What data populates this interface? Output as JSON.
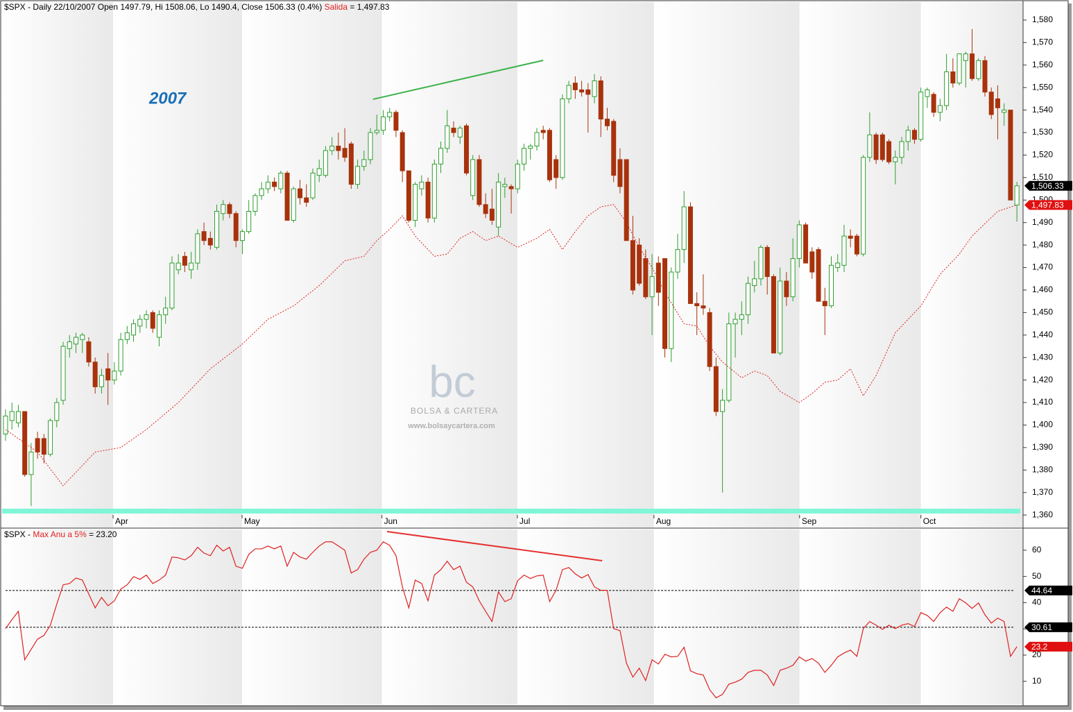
{
  "chart_data": [
    {
      "type": "candlestick",
      "title": "$SPX - Daily 22/10/2007 Open 1497.79, Hi 1508.06, Lo 1490.4, Close 1506.33 (0.4%)",
      "annotation": "2007",
      "watermark": {
        "logo": "bc",
        "name": "BOLSA & CARTERA",
        "url": "www.bolsaycartera.com"
      },
      "up_color": "#2e9e2e",
      "down_color": "#a8320c",
      "xlim": [
        -0.54,
        158.96
      ],
      "xticks": [
        {
          "value": 16.8,
          "label": "Apr"
        },
        {
          "value": 36.95,
          "label": "May"
        },
        {
          "value": 58.8,
          "label": "Jun"
        },
        {
          "value": 79.96,
          "label": "Jul"
        },
        {
          "value": 101.3,
          "label": "Aug"
        },
        {
          "value": 124.05,
          "label": "Sep"
        },
        {
          "value": 143.0,
          "label": "Oct"
        }
      ],
      "ylim": [
        1354.5,
        1588
      ],
      "yticks": [
        {
          "value": 1360,
          "label": "1,360"
        },
        {
          "value": 1370,
          "label": "1,370"
        },
        {
          "value": 1380,
          "label": "1,380"
        },
        {
          "value": 1390,
          "label": "1,390"
        },
        {
          "value": 1400,
          "label": "1,400"
        },
        {
          "value": 1410,
          "label": "1,410"
        },
        {
          "value": 1420,
          "label": "1,420"
        },
        {
          "value": 1430,
          "label": "1,430"
        },
        {
          "value": 1440,
          "label": "1,440"
        },
        {
          "value": 1450,
          "label": "1,450"
        },
        {
          "value": 1460,
          "label": "1,460"
        },
        {
          "value": 1470,
          "label": "1,470"
        },
        {
          "value": 1480,
          "label": "1,480"
        },
        {
          "value": 1490,
          "label": "1,490"
        },
        {
          "value": 1500,
          "label": "1,500"
        },
        {
          "value": 1510,
          "label": "1,510"
        },
        {
          "value": 1520,
          "label": "1,520"
        },
        {
          "value": 1530,
          "label": "1,530"
        },
        {
          "value": 1540,
          "label": "1,540"
        },
        {
          "value": 1550,
          "label": "1,550"
        },
        {
          "value": 1560,
          "label": "1,560"
        },
        {
          "value": 1570,
          "label": "1,570"
        },
        {
          "value": 1580,
          "label": "1,580"
        }
      ],
      "close_label": "1,506.33",
      "ohlc": {
        "open": [
          1396,
          1402,
          1401,
          1406,
          1378,
          1394,
          1394,
          1387,
          1402,
          1411,
          1434,
          1436,
          1438,
          1437,
          1428,
          1417,
          1425,
          1420,
          1424,
          1438,
          1440,
          1444,
          1447,
          1450,
          1439,
          1449,
          1452,
          1469,
          1475,
          1469,
          1472,
          1486,
          1483,
          1479,
          1494,
          1498,
          1494,
          1482,
          1486,
          1495,
          1502,
          1505,
          1508,
          1505,
          1512,
          1491,
          1505,
          1501,
          1501,
          1511,
          1511,
          1522,
          1524,
          1523,
          1525,
          1507,
          1515,
          1518,
          1530,
          1531,
          1537,
          1539,
          1530,
          1513,
          1491,
          1505,
          1508,
          1492,
          1516,
          1523,
          1532,
          1528,
          1533,
          1502,
          1518,
          1498,
          1496,
          1488,
          1506,
          1506,
          1505,
          1516,
          1523,
          1524,
          1531,
          1531,
          1518,
          1510,
          1545,
          1552,
          1549,
          1549,
          1546,
          1553,
          1536,
          1535,
          1518,
          1518,
          1482,
          1480,
          1474,
          1457,
          1472,
          1474,
          1434,
          1468,
          1478,
          1497,
          1454,
          1453,
          1450,
          1426,
          1406,
          1411,
          1445,
          1447,
          1449,
          1462,
          1465,
          1479,
          1466,
          1432,
          1464,
          1457,
          1474,
          1489,
          1477,
          1478,
          1455,
          1453,
          1470,
          1471,
          1484,
          1484,
          1476,
          1519,
          1529,
          1529,
          1526,
          1517,
          1519,
          1526,
          1531,
          1527,
          1546,
          1547,
          1539,
          1542,
          1557,
          1552,
          1562,
          1565,
          1554,
          1562,
          1548,
          1545,
          1539,
          1540,
          1497.79
        ],
        "high": [
          1407,
          1410,
          1409,
          1406,
          1392,
          1397,
          1396,
          1403,
          1412,
          1437,
          1440,
          1441,
          1441,
          1439,
          1430,
          1425,
          1432,
          1428,
          1441,
          1444,
          1447,
          1449,
          1451,
          1451,
          1451,
          1457,
          1475,
          1476,
          1477,
          1477,
          1487,
          1490,
          1486,
          1498,
          1500,
          1499,
          1495,
          1487,
          1500,
          1503,
          1508,
          1511,
          1510,
          1513,
          1513,
          1506,
          1509,
          1507,
          1514,
          1518,
          1524,
          1528,
          1530,
          1532,
          1526,
          1518,
          1522,
          1532,
          1538,
          1540,
          1541,
          1540,
          1531,
          1513,
          1508,
          1511,
          1510,
          1518,
          1526,
          1540,
          1535,
          1533,
          1534,
          1520,
          1520,
          1503,
          1505,
          1512,
          1510,
          1507,
          1518,
          1525,
          1525,
          1532,
          1533,
          1532,
          1520,
          1547,
          1553,
          1555,
          1553,
          1552,
          1556,
          1555,
          1541,
          1536,
          1523,
          1518,
          1493,
          1483,
          1478,
          1476,
          1475,
          1474,
          1470,
          1485,
          1504,
          1499,
          1459,
          1467,
          1452,
          1430,
          1416,
          1450,
          1450,
          1455,
          1466,
          1473,
          1480,
          1480,
          1467,
          1470,
          1468,
          1483,
          1491,
          1490,
          1479,
          1479,
          1461,
          1475,
          1476,
          1489,
          1487,
          1485,
          1520,
          1539,
          1530,
          1530,
          1527,
          1522,
          1528,
          1533,
          1532,
          1550,
          1550,
          1548,
          1545,
          1565,
          1563,
          1565,
          1566,
          1576,
          1563,
          1564,
          1550,
          1551,
          1543,
          1540,
          1508.06
        ],
        "low": [
          1393,
          1398,
          1399,
          1377,
          1364,
          1385,
          1383,
          1386,
          1399,
          1409,
          1430,
          1432,
          1432,
          1426,
          1414,
          1414,
          1409,
          1418,
          1422,
          1436,
          1437,
          1441,
          1443,
          1441,
          1435,
          1445,
          1451,
          1467,
          1468,
          1465,
          1469,
          1480,
          1478,
          1478,
          1491,
          1492,
          1479,
          1476,
          1485,
          1493,
          1500,
          1503,
          1504,
          1503,
          1491,
          1490,
          1498,
          1497,
          1500,
          1508,
          1510,
          1520,
          1518,
          1517,
          1505,
          1505,
          1513,
          1516,
          1529,
          1529,
          1535,
          1528,
          1508,
          1490,
          1488,
          1502,
          1490,
          1490,
          1512,
          1521,
          1528,
          1525,
          1511,
          1500,
          1497,
          1492,
          1489,
          1484,
          1501,
          1494,
          1503,
          1513,
          1518,
          1522,
          1527,
          1508,
          1505,
          1509,
          1543,
          1545,
          1546,
          1530,
          1543,
          1528,
          1531,
          1508,
          1503,
          1482,
          1458,
          1462,
          1456,
          1440,
          1453,
          1430,
          1428,
          1465,
          1472,
          1454,
          1440,
          1449,
          1424,
          1404,
          1370,
          1410,
          1430,
          1440,
          1445,
          1459,
          1462,
          1458,
          1432,
          1431,
          1453,
          1455,
          1470,
          1472,
          1465,
          1455,
          1440,
          1452,
          1468,
          1468,
          1479,
          1475,
          1475,
          1517,
          1516,
          1517,
          1516,
          1507,
          1516,
          1522,
          1525,
          1526,
          1541,
          1537,
          1535,
          1540,
          1550,
          1551,
          1550,
          1553,
          1553,
          1546,
          1536,
          1527,
          1533,
          1500,
          1490.4
        ],
        "close": [
          1404,
          1406,
          1406,
          1378,
          1388,
          1388,
          1387,
          1402,
          1410,
          1435,
          1437,
          1439,
          1440,
          1428,
          1417,
          1422,
          1420,
          1424,
          1438,
          1441,
          1445,
          1447,
          1449,
          1443,
          1449,
          1452,
          1472,
          1472,
          1471,
          1472,
          1485,
          1482,
          1480,
          1495,
          1498,
          1494,
          1482,
          1486,
          1495,
          1502,
          1505,
          1508,
          1506,
          1512,
          1491,
          1505,
          1501,
          1499,
          1512,
          1514,
          1522,
          1524,
          1522,
          1519,
          1507,
          1515,
          1518,
          1530,
          1531,
          1537,
          1539,
          1531,
          1513,
          1491,
          1507,
          1508,
          1492,
          1516,
          1523,
          1533,
          1530,
          1532,
          1512,
          1518,
          1498,
          1494,
          1491,
          1508,
          1507,
          1505,
          1516,
          1523,
          1524,
          1530,
          1530,
          1509,
          1510,
          1545,
          1551,
          1549,
          1548,
          1547,
          1553,
          1536,
          1533,
          1511,
          1506,
          1482,
          1460,
          1463,
          1457,
          1466,
          1459,
          1434,
          1468,
          1478,
          1497,
          1454,
          1453,
          1452,
          1426,
          1406,
          1411,
          1445,
          1447,
          1449,
          1463,
          1465,
          1479,
          1466,
          1432,
          1464,
          1457,
          1474,
          1489,
          1472,
          1468,
          1455,
          1453,
          1471,
          1472,
          1484,
          1483,
          1476,
          1519,
          1529,
          1518,
          1518,
          1517,
          1519,
          1526,
          1531,
          1527,
          1548,
          1549,
          1539,
          1542,
          1557,
          1552,
          1565,
          1565,
          1554,
          1562,
          1548,
          1538,
          1541,
          1540,
          1500,
          1506.33
        ]
      },
      "overlay": {
        "name": "Salida",
        "color": "#e02020",
        "readout": "= 1,497.83",
        "last_label": "1,497.83",
        "x": [
          0,
          5,
          9,
          14,
          18,
          22,
          27,
          32,
          37,
          41,
          45,
          49,
          53,
          56,
          58,
          60,
          62,
          64,
          67,
          69,
          71,
          73,
          75,
          77,
          80,
          83,
          85,
          87,
          89,
          91,
          93,
          95,
          97,
          99,
          101,
          103,
          106,
          108,
          110,
          112,
          115,
          117,
          119,
          121,
          124,
          126,
          128,
          130,
          132,
          134,
          136,
          139,
          143,
          146,
          149,
          151,
          155,
          158
        ],
        "values": [
          1398,
          1388,
          1373,
          1388,
          1390,
          1398,
          1410,
          1425,
          1436,
          1447,
          1453,
          1462,
          1473,
          1475,
          1482,
          1487,
          1493,
          1484,
          1475,
          1476,
          1483,
          1486,
          1482,
          1484,
          1479,
          1483,
          1487,
          1478,
          1486,
          1493,
          1497,
          1498,
          1490,
          1479,
          1470,
          1459,
          1445,
          1444,
          1435,
          1428,
          1421,
          1424,
          1422,
          1415,
          1410,
          1414,
          1419,
          1420,
          1425,
          1413,
          1422,
          1441,
          1453,
          1467,
          1476,
          1484,
          1495,
          1497.83
        ]
      },
      "trendline": {
        "color": "#3cb34a",
        "x": [
          57.4,
          84
        ],
        "y": [
          1544.8,
          1562.1
        ]
      }
    },
    {
      "type": "line",
      "title": "$SPX -",
      "ylim": [
        1.2,
        67.9
      ],
      "yticks": [
        10,
        20,
        30,
        40,
        50,
        60
      ],
      "levels": [
        44.64,
        30.61
      ],
      "series": [
        {
          "name": "Max Anu a 5%",
          "color": "#e02020",
          "readout": "= 23.20",
          "values": [
            30.1,
            33.5,
            36.7,
            18.2,
            22.2,
            26.1,
            27.5,
            31.4,
            39.4,
            46.8,
            47.3,
            49.4,
            48.6,
            43.3,
            38.0,
            42.0,
            38.8,
            40.7,
            45.2,
            46.8,
            49.9,
            48.9,
            50.5,
            47.3,
            48.6,
            50.5,
            57.4,
            57.1,
            56.3,
            57.9,
            61.1,
            58.9,
            57.9,
            61.9,
            59.7,
            61.1,
            53.9,
            53.1,
            58.4,
            60.5,
            60.5,
            61.6,
            60.5,
            61.6,
            53.9,
            59.2,
            57.4,
            56.6,
            59.2,
            61.6,
            63.2,
            63.2,
            61.6,
            60.0,
            51.3,
            52.6,
            56.6,
            59.2,
            60.0,
            63.2,
            61.9,
            57.9,
            46.0,
            38.0,
            48.6,
            47.3,
            40.7,
            50.5,
            52.6,
            55.8,
            52.6,
            53.9,
            47.8,
            46.0,
            40.7,
            36.7,
            32.8,
            44.1,
            40.4,
            41.5,
            48.4,
            50.5,
            49.2,
            50.2,
            50.5,
            40.4,
            44.7,
            52.6,
            53.4,
            51.0,
            49.4,
            50.7,
            46.0,
            44.7,
            44.7,
            30.1,
            29.3,
            16.9,
            11.6,
            15.0,
            10.3,
            18.2,
            16.6,
            20.3,
            19.3,
            19.5,
            23.0,
            14.0,
            12.9,
            12.4,
            6.8,
            3.7,
            5.0,
            8.9,
            9.7,
            10.8,
            13.4,
            14.2,
            14.2,
            12.4,
            8.4,
            14.2,
            15.0,
            16.1,
            19.3,
            17.7,
            18.7,
            16.9,
            13.4,
            16.1,
            19.3,
            20.8,
            21.9,
            19.5,
            30.1,
            32.8,
            31.4,
            29.8,
            31.4,
            30.1,
            31.4,
            32.0,
            30.9,
            36.2,
            35.1,
            32.8,
            36.2,
            38.3,
            36.7,
            41.5,
            39.9,
            37.8,
            39.9,
            35.4,
            32.2,
            34.1,
            32.8,
            19.5,
            23.2
          ]
        }
      ],
      "trendline": {
        "color": "#e53030",
        "x": [
          59.6,
          93.2
        ],
        "y": [
          67.1,
          56.0
        ]
      }
    }
  ]
}
